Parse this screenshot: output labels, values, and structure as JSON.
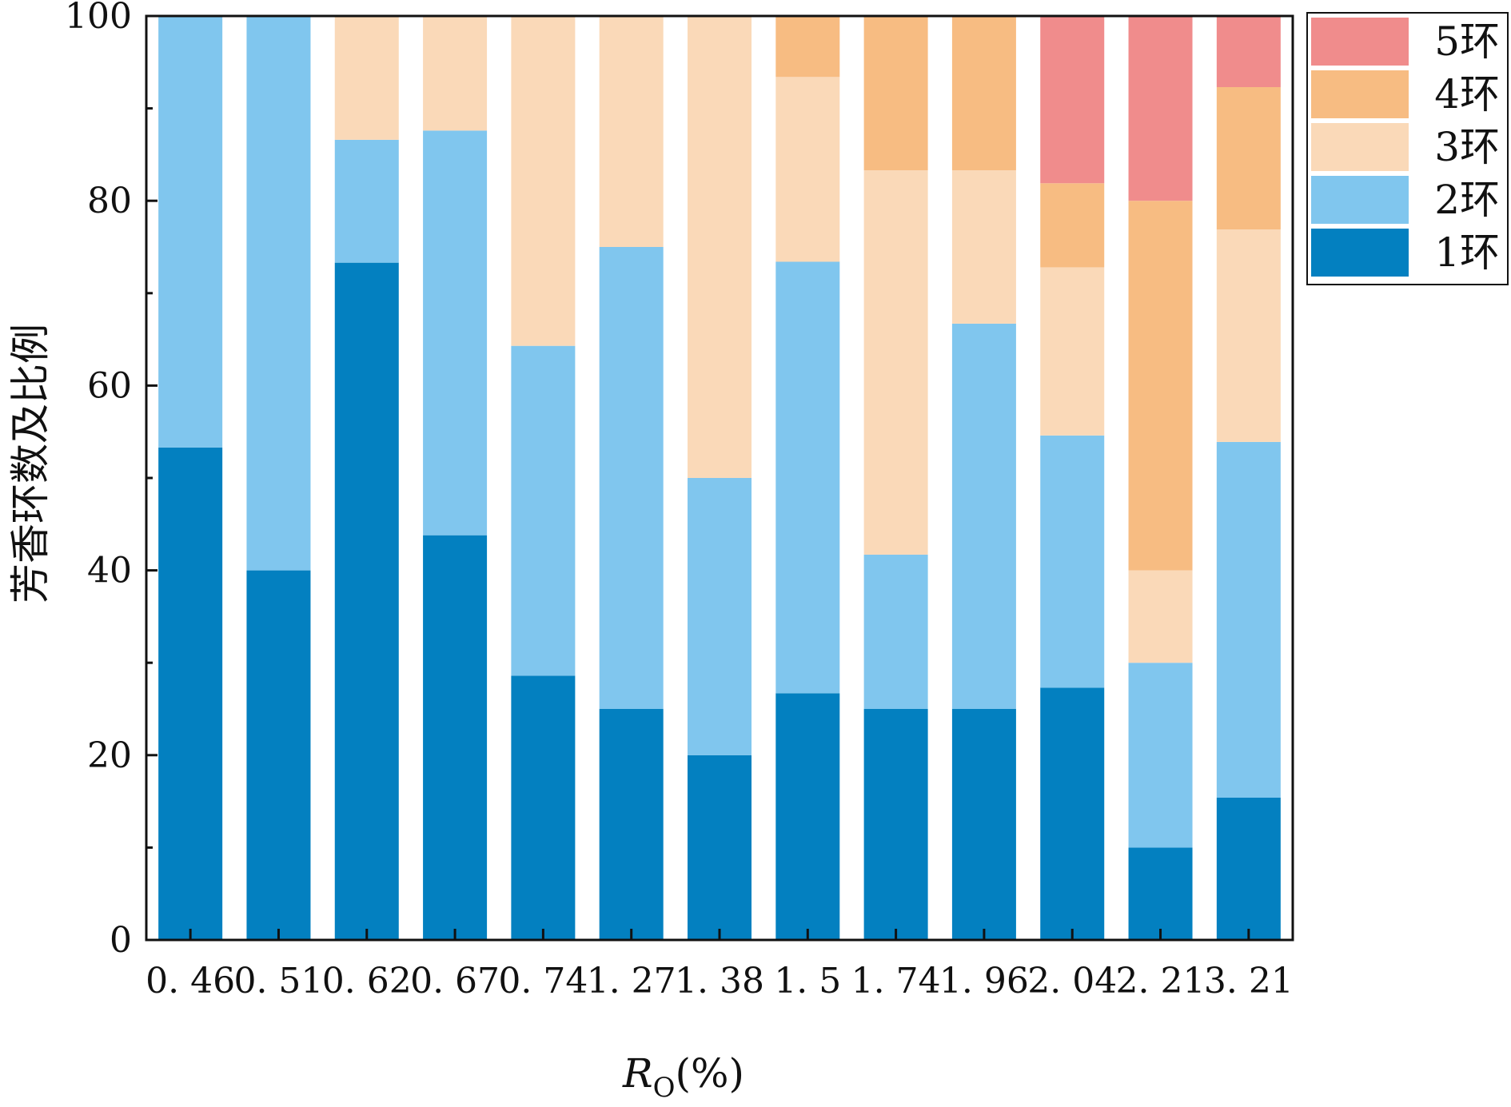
{
  "chart_data": {
    "type": "bar",
    "stacked": true,
    "title": "",
    "xlabel_main": "R",
    "xlabel_sub": "O",
    "xlabel_unit": "(%)",
    "ylabel": "芳香环数及比例",
    "ylim": [
      0,
      100
    ],
    "yticks": [
      "0",
      "20",
      "40",
      "60",
      "80",
      "100"
    ],
    "grid": false,
    "legend_position": "top-right",
    "categories": [
      "0.46",
      "0.51",
      "0.62",
      "0.67",
      "0.74",
      "1.27",
      "1.38",
      "1.5",
      "1.74",
      "1.96",
      "2.04",
      "2.21",
      "3.21"
    ],
    "category_labels": [
      "0. 46",
      "0. 51",
      "0. 62",
      "0. 67",
      "0. 74",
      "1. 27",
      "1. 38",
      "1. 5",
      "1. 74",
      "1. 96",
      "2. 04",
      "2. 21",
      "3. 21"
    ],
    "series": [
      {
        "name": "1环",
        "color": "#0380C0",
        "values": [
          53.3,
          40.0,
          73.3,
          43.8,
          28.6,
          25.0,
          20.0,
          26.7,
          25.0,
          25.0,
          27.3,
          10.0,
          15.4
        ]
      },
      {
        "name": "2环",
        "color": "#80C6EE",
        "values": [
          46.7,
          60.0,
          13.3,
          43.8,
          35.7,
          50.0,
          30.0,
          46.7,
          16.7,
          41.7,
          27.3,
          20.0,
          38.5
        ]
      },
      {
        "name": "3环",
        "color": "#FAD9B8",
        "values": [
          0,
          0,
          13.4,
          12.4,
          35.7,
          25.0,
          50.0,
          20.0,
          41.6,
          16.6,
          18.2,
          10.0,
          23.0
        ]
      },
      {
        "name": "4环",
        "color": "#F7BC82",
        "values": [
          0,
          0,
          0,
          0,
          0,
          0,
          0,
          6.6,
          16.7,
          16.7,
          9.1,
          40.0,
          15.4
        ]
      },
      {
        "name": "5环",
        "color": "#F08C8C",
        "values": [
          0,
          0,
          0,
          0,
          0,
          0,
          0,
          0,
          0,
          0,
          18.1,
          20.0,
          7.7
        ]
      }
    ]
  }
}
